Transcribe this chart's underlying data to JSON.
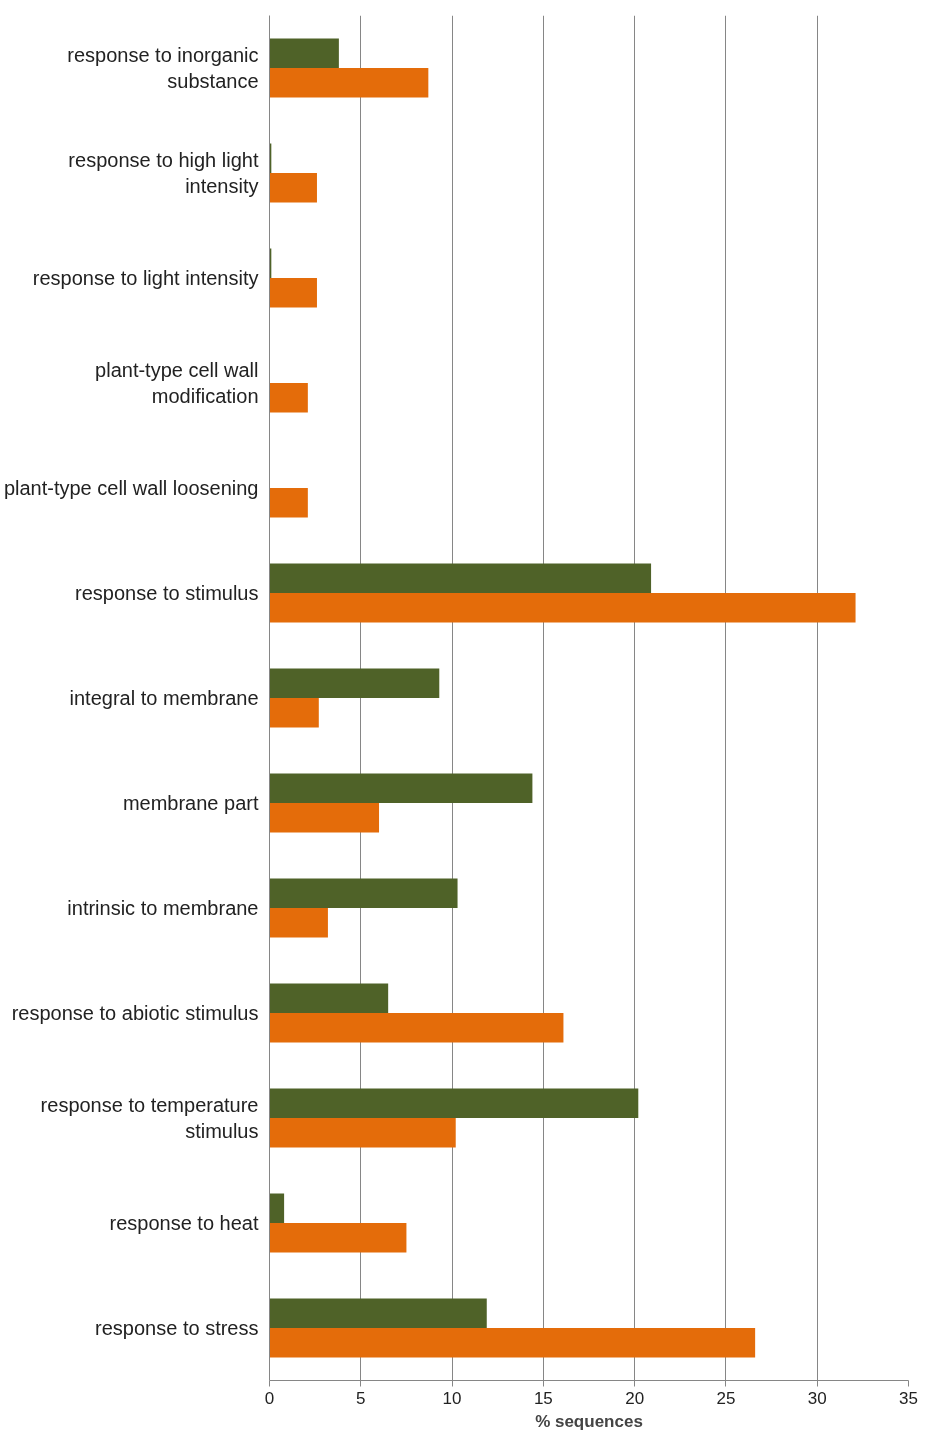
{
  "chart_data": {
    "type": "bar",
    "orientation": "horizontal",
    "xlabel": "% sequences",
    "categories": [
      "response to inorganic substance",
      "response to high light intensity",
      "response to light intensity",
      "plant-type cell wall modification",
      "plant-type cell wall loosening",
      "response to stimulus",
      "integral to membrane",
      "membrane part",
      "intrinsic to membrane",
      "response to abiotic stimulus",
      "response to temperature stimulus",
      "response to heat",
      "response to stress"
    ],
    "series": [
      {
        "color": "#4f6228",
        "values": [
          3.8,
          0.1,
          0.1,
          0,
          0,
          20.9,
          9.3,
          14.4,
          10.3,
          6.5,
          20.2,
          0.8,
          11.9
        ]
      },
      {
        "color": "#e46c0a",
        "values": [
          8.7,
          2.6,
          2.6,
          2.1,
          2.1,
          32.1,
          2.7,
          6.0,
          3.2,
          16.1,
          10.2,
          7.5,
          26.6
        ]
      }
    ],
    "xlim": [
      0,
      35
    ],
    "xticks": [
      0,
      5,
      10,
      15,
      20,
      25,
      30,
      35
    ],
    "grid": "x"
  }
}
